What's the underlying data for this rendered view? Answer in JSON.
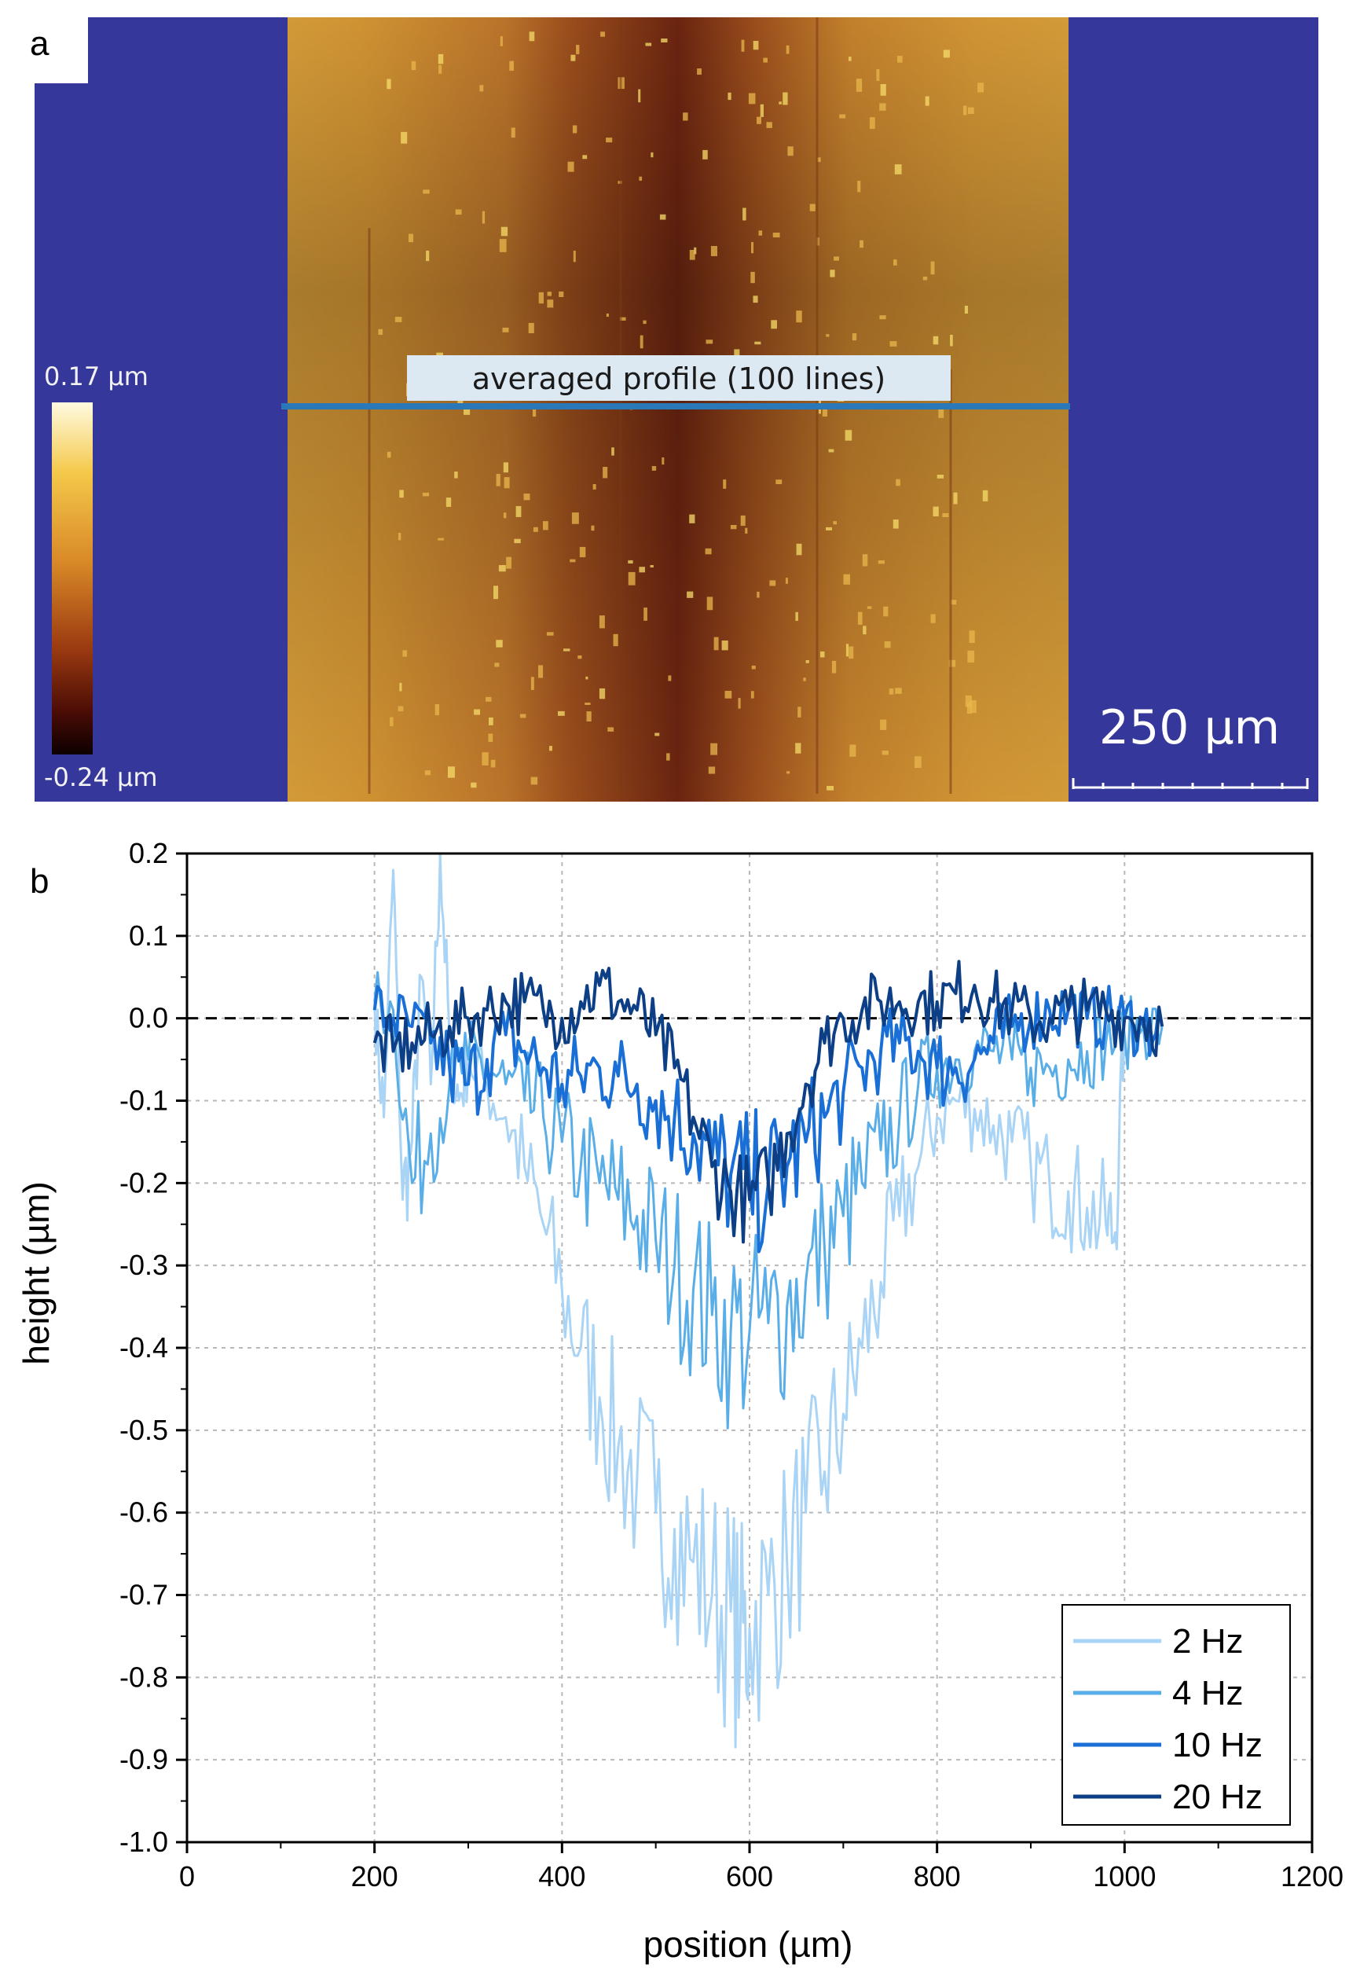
{
  "panel_a": {
    "letter": "a",
    "colorbar_max": "0.17 µm",
    "colorbar_min": "-0.24 µm",
    "profile_label": "averaged profile (100 lines)",
    "scale_bar_label": "250 µm",
    "colors": {
      "background": "#36379a",
      "surface": "#c98a2a",
      "trench": "#5a1a0a",
      "profile_line": "#2b78b8"
    }
  },
  "panel_b": {
    "letter": "b"
  },
  "chart_data": {
    "type": "line",
    "xlabel": "position (µm)",
    "ylabel": "height (µm)",
    "xlim": [
      0,
      1200
    ],
    "ylim": [
      -1.0,
      0.2
    ],
    "xticks": [
      "0",
      "200",
      "400",
      "600",
      "800",
      "1000",
      "1200"
    ],
    "yticks": [
      "0.2",
      "0.1",
      "0.0",
      "-0.1",
      "-0.2",
      "-0.3",
      "-0.4",
      "-0.5",
      "-0.6",
      "-0.7",
      "-0.8",
      "-0.9",
      "-1.0"
    ],
    "grid": true,
    "reference_line": {
      "y": 0.0,
      "style": "dashed"
    },
    "legend": {
      "placement": "bottom-right"
    },
    "series": [
      {
        "name": "2 Hz",
        "color": "#a9d4f5",
        "x": [
          200,
          210,
          220,
          230,
          240,
          250,
          260,
          270,
          280,
          290,
          300,
          320,
          340,
          360,
          380,
          400,
          420,
          440,
          460,
          480,
          500,
          520,
          540,
          560,
          580,
          590,
          600,
          620,
          640,
          660,
          680,
          700,
          720,
          740,
          760,
          780,
          800,
          820,
          840,
          860,
          880,
          900,
          920,
          940,
          960,
          980,
          990,
          1000
        ],
        "y": [
          0.02,
          -0.12,
          0.18,
          -0.22,
          -0.15,
          0.05,
          -0.08,
          0.2,
          -0.02,
          -0.1,
          -0.05,
          -0.08,
          -0.12,
          -0.18,
          -0.25,
          -0.33,
          -0.4,
          -0.46,
          -0.52,
          -0.56,
          -0.6,
          -0.62,
          -0.66,
          -0.7,
          -0.72,
          -0.76,
          -0.74,
          -0.7,
          -0.66,
          -0.6,
          -0.55,
          -0.48,
          -0.4,
          -0.32,
          -0.24,
          -0.18,
          -0.12,
          -0.1,
          -0.11,
          -0.13,
          -0.15,
          -0.18,
          -0.2,
          -0.21,
          -0.23,
          -0.25,
          -0.26,
          0.0
        ]
      },
      {
        "name": "4 Hz",
        "color": "#5aaee8",
        "x": [
          200,
          220,
          240,
          260,
          280,
          300,
          320,
          340,
          360,
          380,
          400,
          420,
          440,
          460,
          480,
          500,
          520,
          540,
          560,
          580,
          600,
          620,
          640,
          660,
          680,
          700,
          720,
          740,
          760,
          780,
          800,
          820,
          840,
          860,
          880,
          900,
          920,
          940,
          960,
          980,
          1000,
          1020,
          1040
        ],
        "y": [
          0.02,
          0.01,
          -0.2,
          -0.14,
          -0.08,
          -0.05,
          -0.06,
          -0.08,
          -0.1,
          -0.12,
          -0.15,
          -0.18,
          -0.2,
          -0.22,
          -0.24,
          -0.27,
          -0.3,
          -0.33,
          -0.36,
          -0.38,
          -0.38,
          -0.37,
          -0.35,
          -0.32,
          -0.28,
          -0.24,
          -0.2,
          -0.16,
          -0.12,
          -0.08,
          -0.06,
          -0.05,
          -0.04,
          -0.04,
          -0.05,
          -0.06,
          -0.06,
          -0.05,
          -0.04,
          -0.03,
          -0.02,
          -0.01,
          -0.01
        ]
      },
      {
        "name": "10 Hz",
        "color": "#1a6fd6",
        "x": [
          200,
          220,
          240,
          260,
          280,
          300,
          320,
          340,
          360,
          380,
          400,
          420,
          440,
          460,
          480,
          500,
          520,
          540,
          560,
          580,
          600,
          620,
          640,
          660,
          680,
          700,
          720,
          740,
          760,
          780,
          800,
          820,
          840,
          860,
          880,
          900,
          920,
          940,
          960,
          980,
          1000,
          1020,
          1040
        ],
        "y": [
          0.01,
          0.0,
          -0.01,
          -0.03,
          -0.06,
          -0.08,
          -0.05,
          -0.02,
          -0.04,
          -0.06,
          -0.08,
          -0.07,
          -0.06,
          -0.07,
          -0.08,
          -0.1,
          -0.12,
          -0.14,
          -0.17,
          -0.19,
          -0.2,
          -0.2,
          -0.18,
          -0.15,
          -0.12,
          -0.09,
          -0.06,
          -0.04,
          -0.03,
          -0.04,
          -0.06,
          -0.06,
          -0.05,
          -0.03,
          -0.01,
          0.0,
          0.01,
          0.01,
          0.0,
          0.0,
          0.0,
          -0.01,
          -0.01
        ]
      },
      {
        "name": "20 Hz",
        "color": "#0d3f86",
        "x": [
          200,
          220,
          240,
          260,
          280,
          300,
          320,
          340,
          360,
          380,
          400,
          420,
          440,
          460,
          480,
          500,
          520,
          540,
          560,
          580,
          600,
          620,
          640,
          660,
          680,
          700,
          720,
          740,
          760,
          780,
          800,
          820,
          840,
          860,
          880,
          900,
          920,
          940,
          960,
          980,
          1000,
          1020,
          1040
        ],
        "y": [
          -0.03,
          -0.04,
          -0.03,
          -0.02,
          -0.01,
          0.0,
          0.01,
          0.02,
          0.02,
          0.01,
          0.0,
          0.02,
          0.04,
          0.02,
          0.01,
          -0.02,
          -0.06,
          -0.12,
          -0.18,
          -0.21,
          -0.22,
          -0.2,
          -0.14,
          -0.08,
          -0.03,
          0.0,
          0.01,
          0.02,
          0.02,
          0.02,
          0.02,
          0.03,
          0.04,
          0.02,
          0.01,
          0.0,
          0.0,
          0.01,
          0.01,
          0.01,
          0.0,
          0.0,
          -0.01
        ]
      }
    ]
  }
}
